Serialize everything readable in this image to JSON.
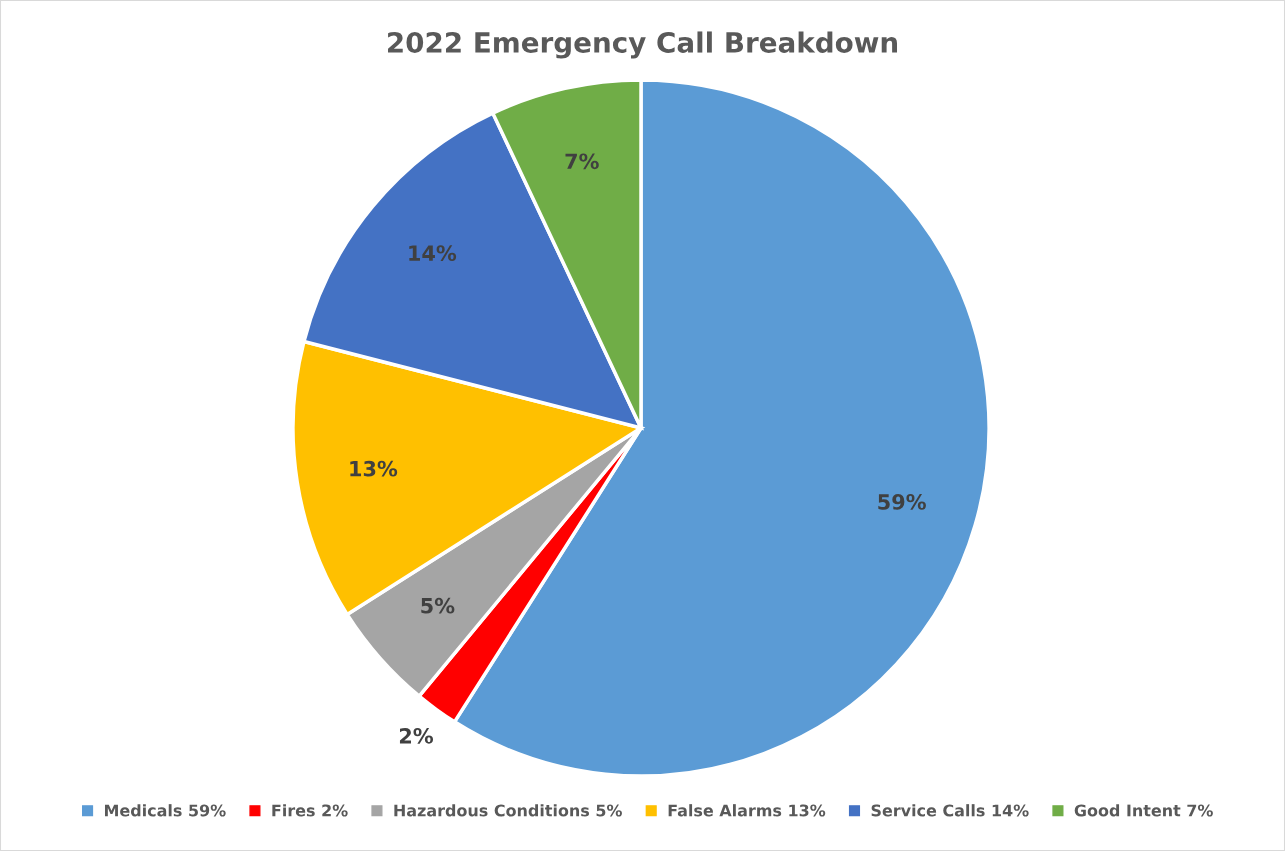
{
  "chart_data": {
    "type": "pie",
    "title": "2022 Emergency Call Breakdown",
    "categories": [
      "Medicals 59%",
      "Fires 2%",
      "Hazardous Conditions 5%",
      "False Alarms 13%",
      "Service Calls 14%",
      "Good Intent 7%"
    ],
    "values": [
      59,
      2,
      5,
      13,
      14,
      7
    ],
    "value_labels": [
      "59%",
      "2%",
      "5%",
      "13%",
      "14%",
      "7%"
    ],
    "colors": [
      "#5b9bd5",
      "#ff0000",
      "#a5a5a5",
      "#ffc000",
      "#4472c4",
      "#70ad47"
    ],
    "legend": "bottom"
  }
}
